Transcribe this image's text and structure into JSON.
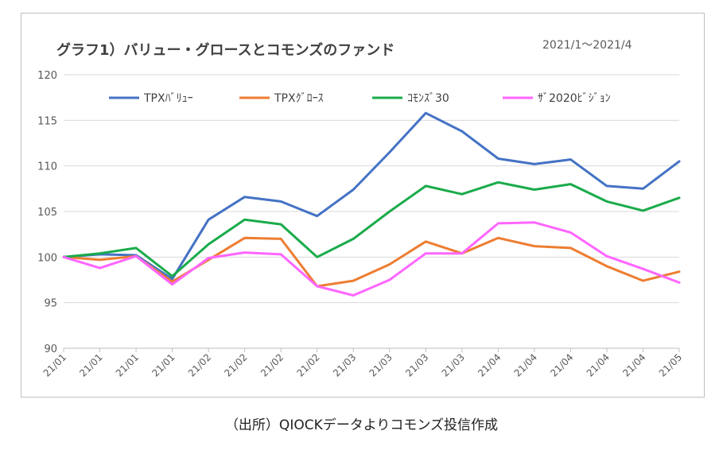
{
  "chart_data": {
    "type": "line",
    "title": "グラフ1）バリュー・グロースとコモンズのファンド",
    "subtitle": "2021/1〜2021/4",
    "xlabel": "",
    "ylabel": "",
    "ylim": [
      90,
      120
    ],
    "y_ticks": [
      90,
      95,
      100,
      105,
      110,
      115,
      120
    ],
    "grid": true,
    "legend_position": "top",
    "categories": [
      "21/01",
      "21/01",
      "21/01",
      "21/01",
      "21/02",
      "21/02",
      "21/02",
      "21/02",
      "21/03",
      "21/03",
      "21/03",
      "21/03",
      "21/04",
      "21/04",
      "21/04",
      "21/04",
      "21/04",
      "21/05"
    ],
    "series": [
      {
        "name": "TPXﾊﾞﾘｭｰ",
        "color": "#4472c4",
        "values": [
          100,
          100.3,
          100.2,
          97.6,
          104.1,
          106.6,
          106.1,
          104.5,
          107.4,
          111.5,
          115.8,
          113.8,
          110.8,
          110.2,
          110.7,
          107.8,
          107.5,
          110.5
        ]
      },
      {
        "name": "TPXｸﾞﾛｰｽ",
        "color": "#ed7d31",
        "values": [
          100,
          99.7,
          100.1,
          97.3,
          99.7,
          102.1,
          102.0,
          96.8,
          97.4,
          99.2,
          101.7,
          100.4,
          102.1,
          101.2,
          101.0,
          99.0,
          97.4,
          98.4
        ]
      },
      {
        "name": "ｺﾓﾝｽﾞ30",
        "color": "#1aab4b",
        "values": [
          100,
          100.4,
          101.0,
          97.9,
          101.4,
          104.1,
          103.6,
          100.0,
          102.0,
          105.0,
          107.8,
          106.9,
          108.2,
          107.4,
          108.0,
          106.1,
          105.1,
          106.5
        ]
      },
      {
        "name": "ｻﾞ2020ﾋﾞｼﾞｮﾝ",
        "color": "#ff66ff",
        "values": [
          100,
          98.8,
          100.1,
          97.0,
          99.9,
          100.5,
          100.3,
          96.8,
          95.8,
          97.5,
          100.4,
          100.4,
          103.7,
          103.8,
          102.7,
          100.1,
          98.7,
          97.2
        ]
      }
    ]
  },
  "source_note": "（出所）QIOCKデータよりコモンズ投信作成"
}
